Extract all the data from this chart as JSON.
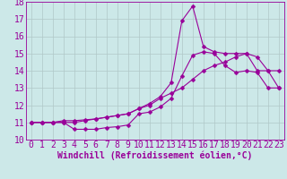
{
  "xlabel": "Windchill (Refroidissement éolien,°C)",
  "bg_color": "#cce8e8",
  "grid_color": "#b0c8c8",
  "line_color": "#990099",
  "xlim": [
    -0.5,
    23.5
  ],
  "ylim": [
    10,
    18
  ],
  "xticks": [
    0,
    1,
    2,
    3,
    4,
    5,
    6,
    7,
    8,
    9,
    10,
    11,
    12,
    13,
    14,
    15,
    16,
    17,
    18,
    19,
    20,
    21,
    22,
    23
  ],
  "yticks": [
    10,
    11,
    12,
    13,
    14,
    15,
    16,
    17,
    18
  ],
  "line1_x": [
    0,
    1,
    2,
    3,
    4,
    5,
    6,
    7,
    8,
    9,
    10,
    11,
    12,
    13,
    14,
    15,
    16,
    17,
    18,
    19,
    20,
    21,
    22,
    23
  ],
  "line1_y": [
    11.0,
    11.0,
    11.0,
    11.0,
    10.6,
    10.6,
    10.6,
    10.7,
    10.75,
    10.85,
    11.5,
    11.6,
    11.9,
    12.4,
    13.7,
    14.9,
    15.1,
    15.0,
    14.3,
    13.9,
    14.0,
    13.9,
    13.0,
    13.0
  ],
  "line2_x": [
    0,
    1,
    2,
    3,
    4,
    5,
    6,
    7,
    8,
    9,
    10,
    11,
    12,
    13,
    14,
    15,
    16,
    17,
    18,
    19,
    20,
    21,
    22,
    23
  ],
  "line2_y": [
    11.0,
    11.0,
    11.0,
    11.1,
    11.1,
    11.15,
    11.2,
    11.3,
    11.4,
    11.5,
    11.8,
    12.0,
    12.4,
    12.7,
    13.0,
    13.5,
    14.0,
    14.3,
    14.5,
    14.8,
    15.0,
    14.8,
    14.0,
    13.0
  ],
  "line3_x": [
    0,
    1,
    2,
    3,
    4,
    5,
    6,
    7,
    8,
    9,
    10,
    11,
    12,
    13,
    14,
    15,
    16,
    17,
    18,
    19,
    20,
    21,
    22,
    23
  ],
  "line3_y": [
    11.0,
    11.0,
    11.0,
    11.0,
    11.0,
    11.1,
    11.2,
    11.3,
    11.4,
    11.5,
    11.8,
    12.1,
    12.5,
    13.3,
    16.9,
    17.75,
    15.4,
    15.1,
    15.0,
    15.0,
    15.0,
    14.0,
    14.0,
    14.0
  ],
  "tick_fontsize": 7,
  "xlabel_fontsize": 7,
  "marker_size": 2.5,
  "line_width": 0.8
}
